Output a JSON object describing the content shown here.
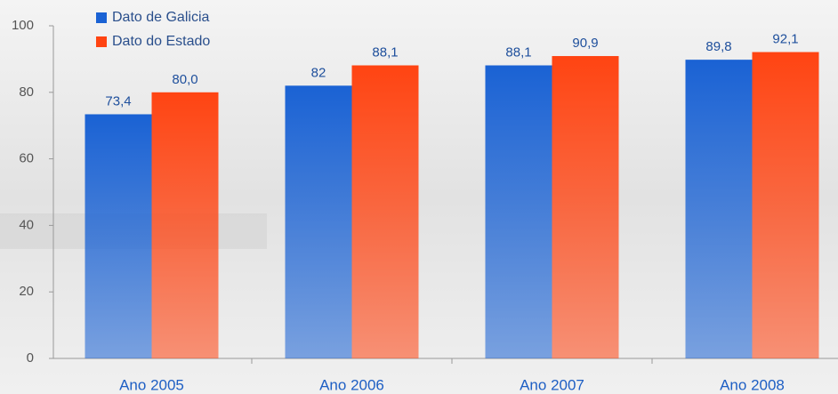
{
  "chart_data": {
    "type": "bar",
    "categories": [
      "Ano 2005",
      "Ano 2006",
      "Ano 2007",
      "Ano 2008"
    ],
    "series": [
      {
        "name": "Dato de Galicia",
        "color": "#1a62d4",
        "values": [
          73.4,
          82,
          88.1,
          89.8
        ],
        "value_labels": [
          "73,4",
          "82",
          "88,1",
          "89,8"
        ]
      },
      {
        "name": "Dato do Estado",
        "color": "#ff4412",
        "values": [
          80.0,
          88.1,
          90.9,
          92.1
        ],
        "value_labels": [
          "80,0",
          "88,1",
          "90,9",
          "92,1"
        ]
      }
    ],
    "ylim": [
      0,
      100
    ],
    "yticks": [
      0,
      20,
      40,
      60,
      80,
      100
    ],
    "grid": false,
    "legend": "top-left"
  }
}
